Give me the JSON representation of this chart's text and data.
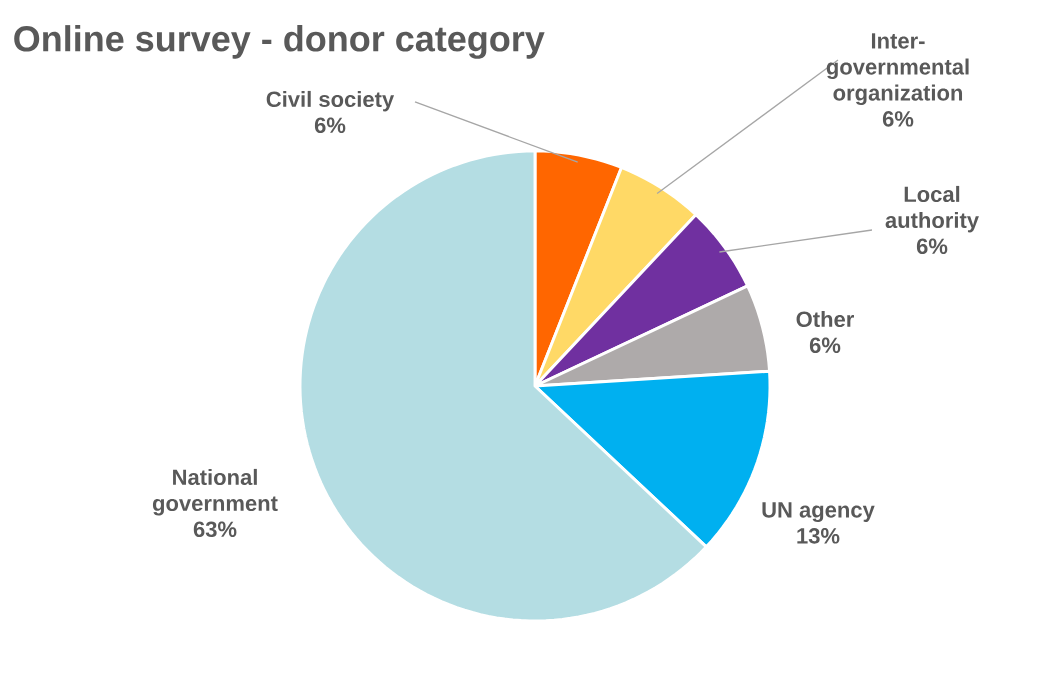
{
  "chart_data": {
    "type": "pie",
    "title": "Online survey  - donor category",
    "categories": [
      "Civil society",
      "Inter-governmental organization",
      "Local authority",
      "Other",
      "UN agency",
      "National government"
    ],
    "values": [
      6,
      6,
      6,
      6,
      13,
      63
    ],
    "value_labels": [
      "6%",
      "6%",
      "6%",
      "6%",
      "13%",
      "63%"
    ],
    "colors": [
      "#ff6600",
      "#ffd966",
      "#7030a0",
      "#aeaaaa",
      "#00b0f0",
      "#b4dde3"
    ]
  }
}
